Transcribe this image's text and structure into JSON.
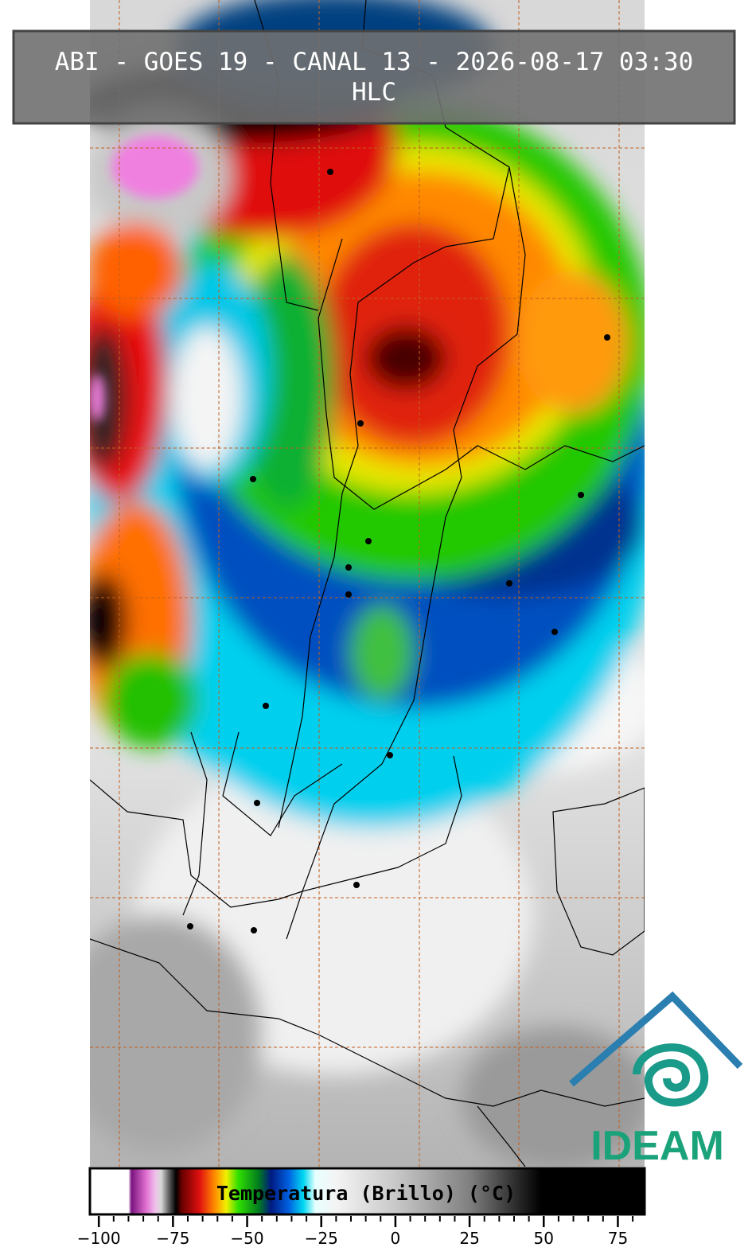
{
  "header": {
    "title": "ABI - GOES 19 - CANAL 13 - 2026-08-17 03:30",
    "subtitle": "HLC"
  },
  "colorbar": {
    "label": "Temperatura (Brillo) (°C)",
    "lim": [
      -103,
      84
    ],
    "ticks": [
      {
        "value": -100,
        "label": "−100"
      },
      {
        "value": -75,
        "label": "−75"
      },
      {
        "value": -50,
        "label": "−50"
      },
      {
        "value": -25,
        "label": "−25"
      },
      0,
      25,
      50,
      75
    ],
    "minor_tick_step": 5,
    "stops": [
      {
        "value": -103,
        "color": "#ffffff"
      },
      {
        "value": -90,
        "color": "#ffffff"
      },
      {
        "value": -89,
        "color": "#7a1480"
      },
      {
        "value": -84,
        "color": "#e070d0"
      },
      {
        "value": -81,
        "color": "#f0c0ec"
      },
      {
        "value": -79,
        "color": "#d8d8d8"
      },
      {
        "value": -76,
        "color": "#505050"
      },
      {
        "value": -74,
        "color": "#000000"
      },
      {
        "value": -72,
        "color": "#6a0000"
      },
      {
        "value": -66,
        "color": "#e01010"
      },
      {
        "value": -61,
        "color": "#ff8a00"
      },
      {
        "value": -57,
        "color": "#f0f000"
      },
      {
        "value": -53,
        "color": "#30e000"
      },
      {
        "value": -46,
        "color": "#007a20"
      },
      {
        "value": -42,
        "color": "#001a80"
      },
      {
        "value": -36,
        "color": "#0060e0"
      },
      {
        "value": -31,
        "color": "#00d8f0"
      },
      {
        "value": -27,
        "color": "#e8ffff"
      },
      {
        "value": -20,
        "color": "#f4f4f4"
      },
      {
        "value": 0,
        "color": "#c8c8c8"
      },
      {
        "value": 25,
        "color": "#808080"
      },
      {
        "value": 49,
        "color": "#000000"
      },
      {
        "value": 84,
        "color": "#000000"
      }
    ]
  },
  "logo": {
    "text": "IDEAM"
  }
}
